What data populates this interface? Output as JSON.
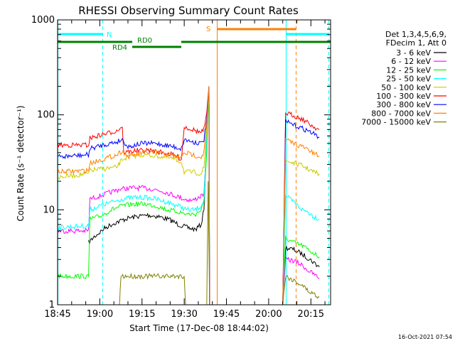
{
  "chart_data": {
    "type": "line",
    "title": "RHESSI Observing Summary Count Rates",
    "xlabel": "Start Time (17-Dec-08 18:44:02)",
    "ylabel": "Count Rate (s⁻¹ detector⁻¹)",
    "yscale": "log",
    "ylim": [
      1,
      1000
    ],
    "y_ticks": [
      "1",
      "10",
      "100",
      "1000"
    ],
    "xlim_minutes_after_1845": [
      0,
      97
    ],
    "x_ticks": [
      {
        "label": "18:45",
        "minute": 0
      },
      {
        "label": "19:00",
        "minute": 15
      },
      {
        "label": "19:15",
        "minute": 30
      },
      {
        "label": "19:30",
        "minute": 45
      },
      {
        "label": "19:45",
        "minute": 60
      },
      {
        "label": "20:00",
        "minute": 75
      },
      {
        "label": "20:15",
        "minute": 90
      }
    ],
    "legend_header": [
      "Det 1,3,4,5,6,9,",
      "FDecim 1, Att 0"
    ],
    "legend_position": "right",
    "series": [
      {
        "name": "3 - 6 keV",
        "color": "#000000",
        "points": [
          [
            11,
            4.5
          ],
          [
            13,
            5.2
          ],
          [
            15,
            5.8
          ],
          [
            17,
            6.5
          ],
          [
            20,
            7.2
          ],
          [
            24,
            8
          ],
          [
            28,
            8.5
          ],
          [
            32,
            8.8
          ],
          [
            36,
            8.5
          ],
          [
            40,
            7.8
          ],
          [
            43,
            7
          ],
          [
            46,
            6.5
          ],
          [
            49,
            6.2
          ],
          [
            51,
            7
          ],
          [
            52,
            10
          ],
          [
            53,
            60
          ],
          [
            53.8,
            200
          ],
          [
            54,
            1
          ],
          [
            80,
            1
          ],
          [
            81,
            4
          ],
          [
            84,
            3.8
          ],
          [
            87,
            3.4
          ],
          [
            89,
            3.1
          ],
          [
            91,
            2.8
          ],
          [
            93,
            2.5
          ]
        ]
      },
      {
        "name": "6 - 12 keV",
        "color": "#ff00ff",
        "points": [
          [
            0,
            6
          ],
          [
            11,
            6
          ],
          [
            11.5,
            13
          ],
          [
            15,
            14
          ],
          [
            18,
            15
          ],
          [
            22,
            16.5
          ],
          [
            26,
            17
          ],
          [
            30,
            17
          ],
          [
            34,
            16.5
          ],
          [
            38,
            15.5
          ],
          [
            42,
            14
          ],
          [
            45,
            13
          ],
          [
            48,
            12.5
          ],
          [
            51,
            14
          ],
          [
            52,
            15
          ],
          [
            53,
            50
          ],
          [
            53.8,
            200
          ],
          [
            54,
            1
          ],
          [
            80,
            1
          ],
          [
            81,
            3
          ],
          [
            84,
            2.9
          ],
          [
            87,
            2.6
          ],
          [
            89,
            2.3
          ],
          [
            91,
            2.1
          ],
          [
            93,
            1.9
          ]
        ]
      },
      {
        "name": "12 - 25 keV",
        "color": "#00ff00",
        "points": [
          [
            0,
            2
          ],
          [
            11,
            2
          ],
          [
            11.5,
            8
          ],
          [
            15,
            8.5
          ],
          [
            19,
            10
          ],
          [
            23,
            11
          ],
          [
            27,
            11.5
          ],
          [
            31,
            11.5
          ],
          [
            35,
            11
          ],
          [
            39,
            10
          ],
          [
            43,
            9.5
          ],
          [
            46,
            9
          ],
          [
            49,
            9
          ],
          [
            51,
            10
          ],
          [
            52,
            12
          ],
          [
            53,
            40
          ],
          [
            53.8,
            190
          ],
          [
            54,
            1
          ],
          [
            80,
            1
          ],
          [
            81,
            5
          ],
          [
            84,
            4.5
          ],
          [
            87,
            4.2
          ],
          [
            89,
            3.8
          ],
          [
            91,
            3.5
          ],
          [
            93,
            3.2
          ]
        ]
      },
      {
        "name": "25 - 50 keV",
        "color": "#00ffff",
        "points": [
          [
            0,
            6.5
          ],
          [
            11,
            6.8
          ],
          [
            11.5,
            10
          ],
          [
            15,
            11
          ],
          [
            19,
            12
          ],
          [
            23,
            13
          ],
          [
            27,
            13.5
          ],
          [
            31,
            13.5
          ],
          [
            35,
            13
          ],
          [
            39,
            12
          ],
          [
            43,
            11
          ],
          [
            46,
            10
          ],
          [
            49,
            10
          ],
          [
            51,
            11
          ],
          [
            52,
            13
          ],
          [
            53,
            60
          ],
          [
            53.8,
            200
          ],
          [
            54,
            1
          ],
          [
            80,
            1
          ],
          [
            81,
            14
          ],
          [
            84,
            12
          ],
          [
            87,
            10
          ],
          [
            89,
            9.5
          ],
          [
            91,
            8.5
          ],
          [
            93,
            8
          ]
        ]
      },
      {
        "name": "50 - 100 keV",
        "color": "#cccc00",
        "points": [
          [
            0,
            22
          ],
          [
            11,
            24
          ],
          [
            11.5,
            26
          ],
          [
            16,
            27
          ],
          [
            21,
            28
          ],
          [
            23,
            34
          ],
          [
            25,
            36
          ],
          [
            30,
            38
          ],
          [
            35,
            37
          ],
          [
            40,
            35
          ],
          [
            44,
            32
          ],
          [
            45,
            25
          ],
          [
            48,
            25
          ],
          [
            51,
            24
          ],
          [
            52,
            28
          ],
          [
            53,
            70
          ],
          [
            53.8,
            200
          ],
          [
            54,
            1
          ],
          [
            80,
            1
          ],
          [
            81,
            33
          ],
          [
            84,
            31
          ],
          [
            87,
            29
          ],
          [
            89,
            27
          ],
          [
            91,
            25
          ],
          [
            93,
            24
          ]
        ]
      },
      {
        "name": "100 - 300 keV",
        "color": "#ff0000",
        "points": [
          [
            0,
            48
          ],
          [
            11,
            48
          ],
          [
            11.5,
            57
          ],
          [
            16,
            62
          ],
          [
            21,
            68
          ],
          [
            23,
            76
          ],
          [
            23.5,
            40
          ],
          [
            28,
            42
          ],
          [
            33,
            42
          ],
          [
            38,
            40
          ],
          [
            42,
            37
          ],
          [
            44,
            34
          ],
          [
            45,
            75
          ],
          [
            48,
            70
          ],
          [
            51,
            65
          ],
          [
            52,
            70
          ],
          [
            53,
            100
          ],
          [
            53.8,
            200
          ],
          [
            54,
            1
          ],
          [
            80,
            1
          ],
          [
            81,
            105
          ],
          [
            84,
            98
          ],
          [
            87,
            90
          ],
          [
            89,
            82
          ],
          [
            91,
            75
          ],
          [
            93,
            70
          ]
        ]
      },
      {
        "name": "300 - 800 keV",
        "color": "#0000ff",
        "points": [
          [
            0,
            36
          ],
          [
            11,
            38
          ],
          [
            11.5,
            44
          ],
          [
            16,
            48
          ],
          [
            21,
            52
          ],
          [
            23,
            55
          ],
          [
            25,
            46
          ],
          [
            30,
            50
          ],
          [
            35,
            50
          ],
          [
            40,
            47
          ],
          [
            44,
            44
          ],
          [
            45,
            55
          ],
          [
            48,
            52
          ],
          [
            51,
            50
          ],
          [
            52,
            55
          ],
          [
            53,
            90
          ],
          [
            53.8,
            200
          ],
          [
            54,
            1
          ],
          [
            80,
            1
          ],
          [
            81,
            85
          ],
          [
            84,
            78
          ],
          [
            87,
            72
          ],
          [
            89,
            68
          ],
          [
            91,
            63
          ],
          [
            93,
            58
          ]
        ]
      },
      {
        "name": "800 - 7000 keV",
        "color": "#ff8000",
        "points": [
          [
            0,
            25
          ],
          [
            11,
            26
          ],
          [
            11.5,
            31
          ],
          [
            16,
            34
          ],
          [
            21,
            38
          ],
          [
            23,
            42
          ],
          [
            25,
            36
          ],
          [
            30,
            40
          ],
          [
            35,
            40
          ],
          [
            40,
            38
          ],
          [
            44,
            35
          ],
          [
            45,
            40
          ],
          [
            48,
            38
          ],
          [
            51,
            36
          ],
          [
            52,
            40
          ],
          [
            53,
            80
          ],
          [
            53.8,
            200
          ],
          [
            54,
            1
          ],
          [
            80,
            1
          ],
          [
            81,
            55
          ],
          [
            84,
            50
          ],
          [
            87,
            46
          ],
          [
            89,
            43
          ],
          [
            91,
            39
          ],
          [
            93,
            37
          ]
        ]
      },
      {
        "name": "7000 - 15000 keV",
        "color": "#808000",
        "points": [
          [
            0,
            1
          ],
          [
            22,
            1
          ],
          [
            22.5,
            2
          ],
          [
            30,
            2
          ],
          [
            38,
            2
          ],
          [
            45,
            2
          ],
          [
            45.5,
            1
          ],
          [
            53,
            1
          ],
          [
            53.5,
            20
          ],
          [
            54,
            1
          ],
          [
            80,
            1
          ],
          [
            81,
            2
          ],
          [
            84,
            1.8
          ],
          [
            87,
            1.6
          ],
          [
            89,
            1.4
          ],
          [
            91,
            1.3
          ],
          [
            93,
            1.2
          ]
        ]
      }
    ],
    "state_labels": [
      {
        "text": "N",
        "color": "#00ffff"
      },
      {
        "text": "RD0",
        "color": "#008000"
      },
      {
        "text": "RD4",
        "color": "#008000"
      },
      {
        "text": "S",
        "color": "#ff8000"
      }
    ]
  },
  "footer_timestamp": "16-Oct-2021 07:54"
}
